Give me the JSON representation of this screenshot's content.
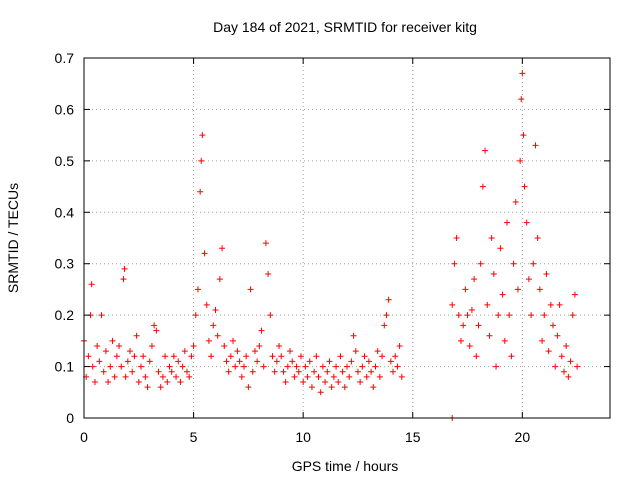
{
  "chart_data": {
    "type": "scatter",
    "title": "Day 184 of 2021, SRMTID for receiver kitg",
    "xlabel": "GPS time / hours",
    "ylabel": "SRMTID / TECUs",
    "xlim": [
      0,
      24
    ],
    "ylim": [
      0,
      0.7
    ],
    "xticks": [
      0,
      5,
      10,
      15,
      20
    ],
    "xtick_labels": [
      "0",
      "5",
      "10",
      "15",
      "20"
    ],
    "yticks": [
      0,
      0.1,
      0.2,
      0.3,
      0.4,
      0.5,
      0.6,
      0.7
    ],
    "ytick_labels": [
      "0",
      "0.1",
      "0.2",
      "0.3",
      "0.4",
      "0.5",
      "0.6",
      "0.7"
    ],
    "grid": true,
    "marker": "+",
    "color": "#ff0000",
    "series": [
      {
        "name": "SRMTID",
        "points": [
          [
            0.0,
            0.15
          ],
          [
            0.1,
            0.08
          ],
          [
            0.2,
            0.12
          ],
          [
            0.3,
            0.2
          ],
          [
            0.35,
            0.26
          ],
          [
            0.4,
            0.1
          ],
          [
            0.5,
            0.07
          ],
          [
            0.6,
            0.14
          ],
          [
            0.7,
            0.11
          ],
          [
            0.8,
            0.2
          ],
          [
            0.9,
            0.09
          ],
          [
            1.0,
            0.13
          ],
          [
            1.1,
            0.07
          ],
          [
            1.2,
            0.1
          ],
          [
            1.3,
            0.15
          ],
          [
            1.4,
            0.08
          ],
          [
            1.5,
            0.12
          ],
          [
            1.6,
            0.14
          ],
          [
            1.7,
            0.1
          ],
          [
            1.8,
            0.27
          ],
          [
            1.85,
            0.29
          ],
          [
            1.9,
            0.08
          ],
          [
            2.0,
            0.11
          ],
          [
            2.1,
            0.13
          ],
          [
            2.2,
            0.09
          ],
          [
            2.3,
            0.12
          ],
          [
            2.4,
            0.16
          ],
          [
            2.5,
            0.07
          ],
          [
            2.6,
            0.1
          ],
          [
            2.7,
            0.12
          ],
          [
            2.8,
            0.08
          ],
          [
            2.9,
            0.06
          ],
          [
            3.0,
            0.11
          ],
          [
            3.1,
            0.14
          ],
          [
            3.2,
            0.18
          ],
          [
            3.3,
            0.17
          ],
          [
            3.4,
            0.09
          ],
          [
            3.5,
            0.06
          ],
          [
            3.6,
            0.08
          ],
          [
            3.7,
            0.12
          ],
          [
            3.8,
            0.07
          ],
          [
            3.9,
            0.1
          ],
          [
            4.0,
            0.09
          ],
          [
            4.1,
            0.12
          ],
          [
            4.2,
            0.08
          ],
          [
            4.3,
            0.11
          ],
          [
            4.4,
            0.07
          ],
          [
            4.5,
            0.1
          ],
          [
            4.6,
            0.13
          ],
          [
            4.7,
            0.09
          ],
          [
            4.8,
            0.08
          ],
          [
            4.9,
            0.12
          ],
          [
            5.0,
            0.14
          ],
          [
            5.1,
            0.2
          ],
          [
            5.2,
            0.25
          ],
          [
            5.3,
            0.44
          ],
          [
            5.35,
            0.5
          ],
          [
            5.4,
            0.55
          ],
          [
            5.5,
            0.32
          ],
          [
            5.6,
            0.22
          ],
          [
            5.7,
            0.15
          ],
          [
            5.8,
            0.12
          ],
          [
            5.9,
            0.18
          ],
          [
            6.0,
            0.21
          ],
          [
            6.1,
            0.16
          ],
          [
            6.2,
            0.27
          ],
          [
            6.3,
            0.33
          ],
          [
            6.4,
            0.14
          ],
          [
            6.5,
            0.11
          ],
          [
            6.6,
            0.09
          ],
          [
            6.7,
            0.12
          ],
          [
            6.8,
            0.15
          ],
          [
            6.9,
            0.1
          ],
          [
            7.0,
            0.13
          ],
          [
            7.1,
            0.11
          ],
          [
            7.2,
            0.08
          ],
          [
            7.3,
            0.1
          ],
          [
            7.4,
            0.12
          ],
          [
            7.5,
            0.06
          ],
          [
            7.6,
            0.25
          ],
          [
            7.7,
            0.09
          ],
          [
            7.8,
            0.13
          ],
          [
            7.9,
            0.11
          ],
          [
            8.0,
            0.14
          ],
          [
            8.1,
            0.17
          ],
          [
            8.2,
            0.1
          ],
          [
            8.3,
            0.34
          ],
          [
            8.4,
            0.28
          ],
          [
            8.5,
            0.2
          ],
          [
            8.6,
            0.12
          ],
          [
            8.7,
            0.09
          ],
          [
            8.8,
            0.11
          ],
          [
            8.9,
            0.14
          ],
          [
            9.0,
            0.12
          ],
          [
            9.1,
            0.09
          ],
          [
            9.2,
            0.07
          ],
          [
            9.3,
            0.1
          ],
          [
            9.4,
            0.13
          ],
          [
            9.5,
            0.11
          ],
          [
            9.6,
            0.08
          ],
          [
            9.7,
            0.1
          ],
          [
            9.8,
            0.09
          ],
          [
            9.9,
            0.12
          ],
          [
            10.0,
            0.07
          ],
          [
            10.1,
            0.1
          ],
          [
            10.2,
            0.08
          ],
          [
            10.3,
            0.11
          ],
          [
            10.4,
            0.06
          ],
          [
            10.5,
            0.09
          ],
          [
            10.6,
            0.12
          ],
          [
            10.7,
            0.08
          ],
          [
            10.8,
            0.05
          ],
          [
            10.9,
            0.1
          ],
          [
            11.0,
            0.07
          ],
          [
            11.1,
            0.09
          ],
          [
            11.2,
            0.11
          ],
          [
            11.3,
            0.06
          ],
          [
            11.4,
            0.08
          ],
          [
            11.5,
            0.1
          ],
          [
            11.6,
            0.07
          ],
          [
            11.7,
            0.12
          ],
          [
            11.8,
            0.09
          ],
          [
            11.9,
            0.06
          ],
          [
            12.0,
            0.1
          ],
          [
            12.1,
            0.08
          ],
          [
            12.2,
            0.11
          ],
          [
            12.3,
            0.16
          ],
          [
            12.4,
            0.13
          ],
          [
            12.5,
            0.09
          ],
          [
            12.6,
            0.07
          ],
          [
            12.7,
            0.1
          ],
          [
            12.8,
            0.12
          ],
          [
            12.9,
            0.08
          ],
          [
            13.0,
            0.11
          ],
          [
            13.1,
            0.09
          ],
          [
            13.2,
            0.06
          ],
          [
            13.3,
            0.1
          ],
          [
            13.4,
            0.13
          ],
          [
            13.5,
            0.08
          ],
          [
            13.6,
            0.12
          ],
          [
            13.7,
            0.18
          ],
          [
            13.8,
            0.2
          ],
          [
            13.9,
            0.23
          ],
          [
            14.0,
            0.11
          ],
          [
            14.1,
            0.09
          ],
          [
            14.2,
            0.12
          ],
          [
            14.3,
            0.1
          ],
          [
            14.4,
            0.14
          ],
          [
            14.5,
            0.08
          ],
          [
            16.8,
            0.0
          ],
          [
            16.8,
            0.22
          ],
          [
            16.9,
            0.3
          ],
          [
            17.0,
            0.35
          ],
          [
            17.1,
            0.2
          ],
          [
            17.2,
            0.15
          ],
          [
            17.3,
            0.18
          ],
          [
            17.4,
            0.25
          ],
          [
            17.5,
            0.2
          ],
          [
            17.6,
            0.14
          ],
          [
            17.7,
            0.21
          ],
          [
            17.8,
            0.27
          ],
          [
            17.9,
            0.12
          ],
          [
            18.0,
            0.18
          ],
          [
            18.1,
            0.3
          ],
          [
            18.2,
            0.45
          ],
          [
            18.3,
            0.52
          ],
          [
            18.4,
            0.22
          ],
          [
            18.5,
            0.16
          ],
          [
            18.6,
            0.35
          ],
          [
            18.7,
            0.28
          ],
          [
            18.8,
            0.1
          ],
          [
            18.9,
            0.2
          ],
          [
            19.0,
            0.33
          ],
          [
            19.1,
            0.24
          ],
          [
            19.2,
            0.15
          ],
          [
            19.3,
            0.38
          ],
          [
            19.4,
            0.2
          ],
          [
            19.5,
            0.12
          ],
          [
            19.6,
            0.3
          ],
          [
            19.7,
            0.42
          ],
          [
            19.8,
            0.25
          ],
          [
            19.9,
            0.5
          ],
          [
            19.95,
            0.62
          ],
          [
            20.0,
            0.67
          ],
          [
            20.05,
            0.55
          ],
          [
            20.1,
            0.45
          ],
          [
            20.2,
            0.38
          ],
          [
            20.3,
            0.27
          ],
          [
            20.4,
            0.2
          ],
          [
            20.5,
            0.3
          ],
          [
            20.6,
            0.53
          ],
          [
            20.7,
            0.35
          ],
          [
            20.8,
            0.25
          ],
          [
            20.9,
            0.15
          ],
          [
            21.0,
            0.2
          ],
          [
            21.1,
            0.28
          ],
          [
            21.2,
            0.13
          ],
          [
            21.3,
            0.22
          ],
          [
            21.4,
            0.18
          ],
          [
            21.5,
            0.1
          ],
          [
            21.6,
            0.16
          ],
          [
            21.7,
            0.22
          ],
          [
            21.8,
            0.12
          ],
          [
            21.9,
            0.09
          ],
          [
            22.0,
            0.14
          ],
          [
            22.1,
            0.08
          ],
          [
            22.2,
            0.11
          ],
          [
            22.3,
            0.2
          ],
          [
            22.4,
            0.24
          ],
          [
            22.5,
            0.1
          ]
        ]
      }
    ]
  }
}
